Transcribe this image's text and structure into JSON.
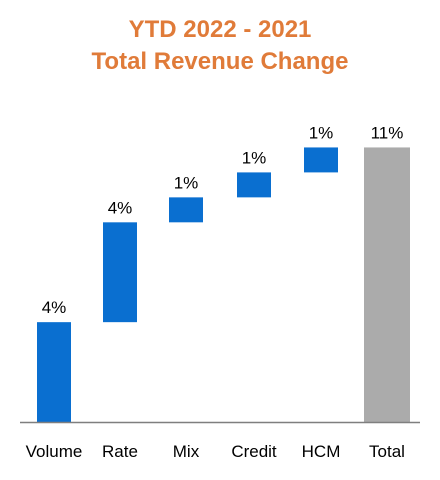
{
  "header": {
    "title_line1": "YTD 2022 - 2021",
    "title_line2": "Total Revenue Change"
  },
  "chart_data": {
    "type": "bar",
    "subtype": "waterfall",
    "title": "YTD 2022 - 2021 Total Revenue Change",
    "categories": [
      "Volume",
      "Rate",
      "Mix",
      "Credit",
      "HCM",
      "Total"
    ],
    "values": [
      4,
      4,
      1,
      1,
      1,
      11
    ],
    "data_labels": [
      "4%",
      "4%",
      "1%",
      "1%",
      "1%",
      "11%"
    ],
    "bar_starts": [
      0,
      4,
      8,
      9,
      10,
      0
    ],
    "total_index": 5,
    "ylim": [
      0,
      12.5
    ],
    "grid": false,
    "legend": "none",
    "colors": {
      "increase": "#0A6FD0",
      "total": "#ABABAB",
      "title": "#E07B39",
      "axis": "#7F7F7F"
    }
  }
}
